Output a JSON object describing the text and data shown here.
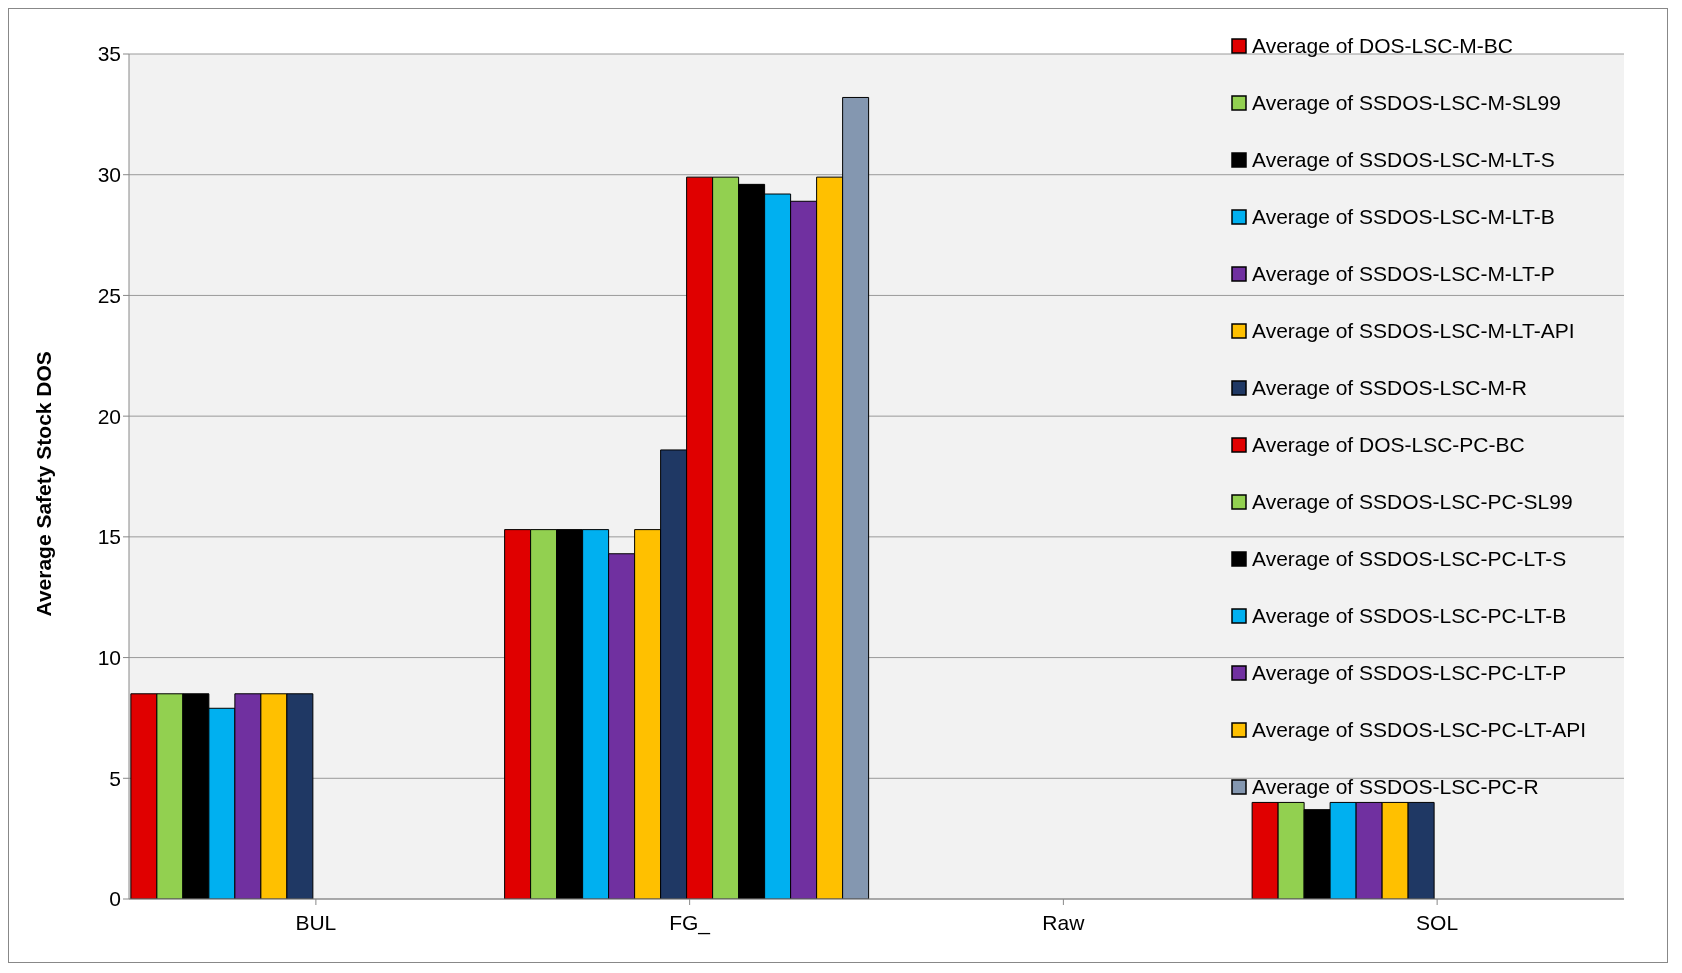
{
  "chart_data": {
    "type": "bar",
    "ylabel": "Average Safety Stock DOS",
    "categories": [
      "BUL",
      "FG_",
      "Raw",
      "SOL"
    ],
    "ylim": [
      0,
      35
    ],
    "yticks": [
      0,
      5,
      10,
      15,
      20,
      25,
      30,
      35
    ],
    "grid": "y",
    "legend": "right",
    "series": [
      {
        "name": "Average of DOS-LSC-M-BC",
        "color": "#e00000",
        "values": [
          8.5,
          15.3,
          null,
          4.0
        ]
      },
      {
        "name": "Average of SSDOS-LSC-M-SL99",
        "color": "#92d050",
        "values": [
          8.5,
          15.3,
          null,
          4.0
        ]
      },
      {
        "name": "Average of SSDOS-LSC-M-LT-S",
        "color": "#000000",
        "values": [
          8.5,
          15.3,
          null,
          3.7
        ]
      },
      {
        "name": "Average of SSDOS-LSC-M-LT-B",
        "color": "#00b0f0",
        "values": [
          7.9,
          15.3,
          null,
          4.0
        ]
      },
      {
        "name": "Average of SSDOS-LSC-M-LT-P",
        "color": "#7030a0",
        "values": [
          8.5,
          14.3,
          null,
          4.0
        ]
      },
      {
        "name": "Average of SSDOS-LSC-M-LT-API",
        "color": "#ffc000",
        "values": [
          8.5,
          15.3,
          null,
          4.0
        ]
      },
      {
        "name": "Average of SSDOS-LSC-M-R",
        "color": "#1f3864",
        "values": [
          8.5,
          18.6,
          null,
          4.0
        ]
      },
      {
        "name": "Average of DOS-LSC-PC-BC",
        "color": "#e00000",
        "values": [
          null,
          29.9,
          null,
          null
        ]
      },
      {
        "name": "Average of SSDOS-LSC-PC-SL99",
        "color": "#92d050",
        "values": [
          null,
          29.9,
          null,
          null
        ]
      },
      {
        "name": "Average of SSDOS-LSC-PC-LT-S",
        "color": "#000000",
        "values": [
          null,
          29.6,
          null,
          null
        ]
      },
      {
        "name": "Average of SSDOS-LSC-PC-LT-B",
        "color": "#00b0f0",
        "values": [
          null,
          29.2,
          null,
          null
        ]
      },
      {
        "name": "Average of SSDOS-LSC-PC-LT-P",
        "color": "#7030a0",
        "values": [
          null,
          28.9,
          null,
          null
        ]
      },
      {
        "name": "Average of SSDOS-LSC-PC-LT-API",
        "color": "#ffc000",
        "values": [
          null,
          29.9,
          null,
          null
        ]
      },
      {
        "name": "Average of SSDOS-LSC-PC-R",
        "color": "#8497b0",
        "values": [
          null,
          33.2,
          null,
          null
        ]
      }
    ]
  }
}
